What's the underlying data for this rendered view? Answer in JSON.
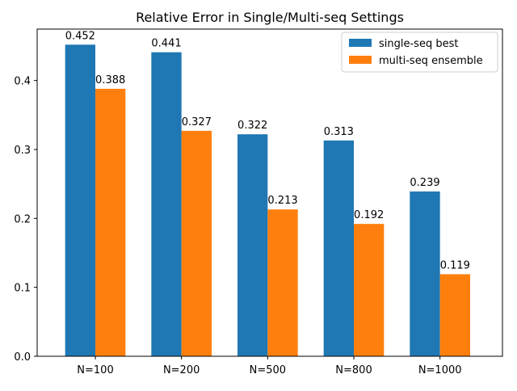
{
  "chart_data": {
    "type": "bar",
    "title": "Relative Error in Single/Multi-seq Settings",
    "xlabel": "",
    "ylabel": "",
    "categories": [
      "N=100",
      "N=200",
      "N=500",
      "N=800",
      "N=1000"
    ],
    "series": [
      {
        "name": "single-seq best",
        "values": [
          0.452,
          0.441,
          0.322,
          0.313,
          0.239
        ],
        "labels": [
          "0.452",
          "0.441",
          "0.322",
          "0.313",
          "0.239"
        ],
        "color": "#1f77b4"
      },
      {
        "name": "multi-seq ensemble",
        "values": [
          0.388,
          0.327,
          0.213,
          0.192,
          0.119
        ],
        "labels": [
          "0.388",
          "0.327",
          "0.213",
          "0.192",
          "0.119"
        ],
        "color": "#ff7f0e"
      }
    ],
    "ylim": [
      0,
      0.4746
    ],
    "yticks": [
      0.0,
      0.1,
      0.2,
      0.3,
      0.4
    ],
    "ytick_labels": [
      "0.0",
      "0.1",
      "0.2",
      "0.3",
      "0.4"
    ],
    "grid": false,
    "legend_position": "top-right"
  }
}
